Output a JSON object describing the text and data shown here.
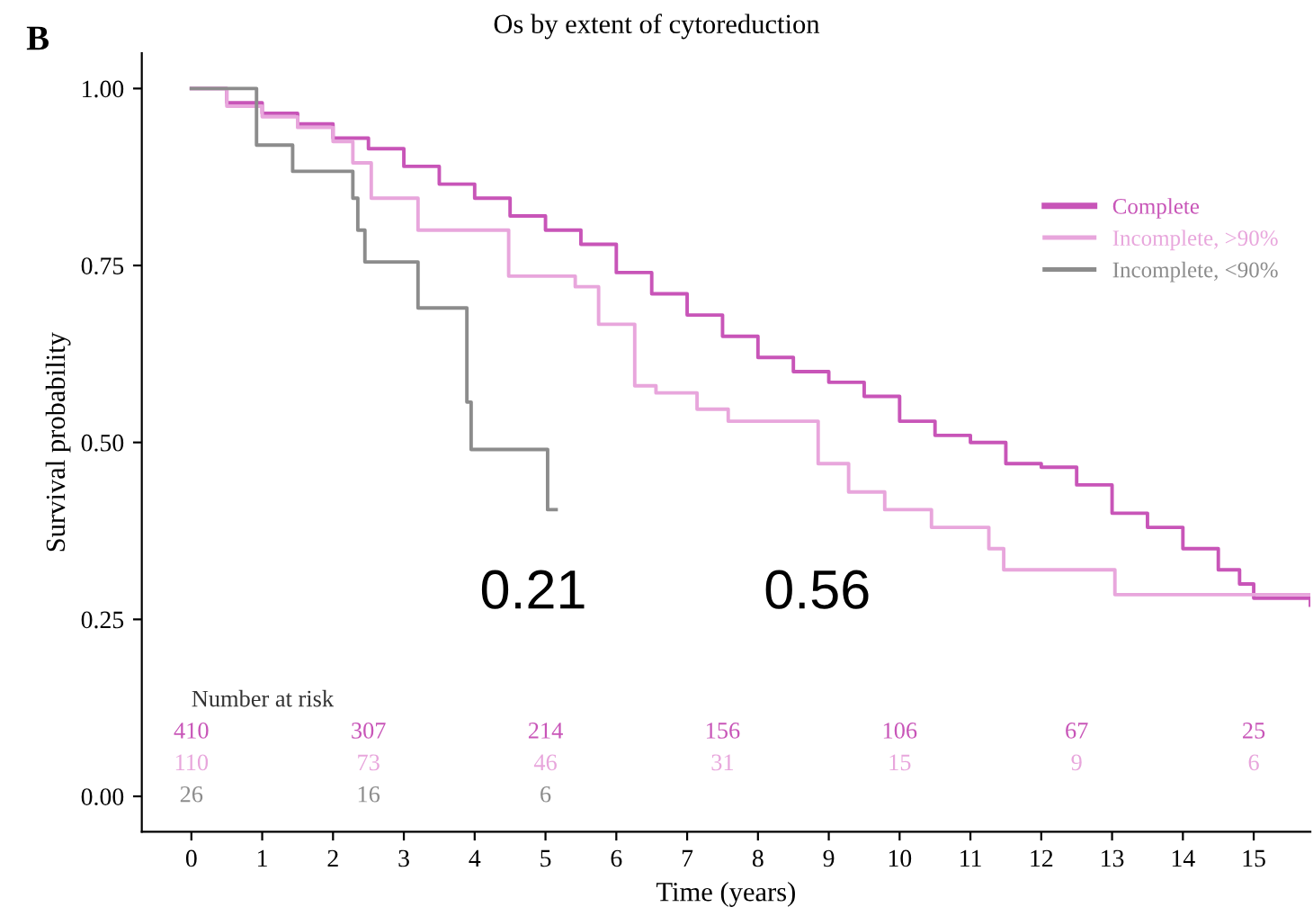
{
  "chart_data": {
    "type": "step",
    "title": "Os by extent of cytoreduction",
    "xlabel": "Time (years)",
    "ylabel": "Survival probability",
    "xlim": [
      -0.7,
      15.8
    ],
    "ylim": [
      -0.05,
      1.05
    ],
    "xticks": [
      0,
      1,
      2,
      3,
      4,
      5,
      6,
      7,
      8,
      9,
      10,
      11,
      12,
      13,
      14,
      15
    ],
    "yticks": [
      {
        "value": 0,
        "label": "0.00"
      },
      {
        "value": 0.25,
        "label": "0.25"
      },
      {
        "value": 0.5,
        "label": "0.50"
      },
      {
        "value": 0.75,
        "label": "0.75"
      },
      {
        "value": 1,
        "label": "1.00"
      }
    ],
    "grid": false,
    "legend": "top right",
    "line_style": "solid",
    "series": [
      {
        "name": "Complete",
        "color": "#c855b8",
        "x": [
          0,
          0.5,
          1,
          1.5,
          2,
          2.5,
          3,
          3.5,
          4,
          4.5,
          5,
          5.5,
          6,
          6.5,
          7,
          7.5,
          8,
          8.5,
          9,
          9.5,
          10,
          10.5,
          11,
          11.5,
          12,
          12.5,
          13,
          13.5,
          14,
          14.5,
          14.8,
          15,
          15.8
        ],
        "values": [
          1.0,
          0.98,
          0.965,
          0.95,
          0.93,
          0.915,
          0.89,
          0.865,
          0.845,
          0.82,
          0.8,
          0.78,
          0.74,
          0.71,
          0.68,
          0.65,
          0.62,
          0.6,
          0.585,
          0.565,
          0.53,
          0.51,
          0.5,
          0.47,
          0.465,
          0.44,
          0.4,
          0.38,
          0.35,
          0.32,
          0.3,
          0.28,
          0.27
        ]
      },
      {
        "name": "Incomplete, >90%",
        "color": "#e8a6dc",
        "x": [
          0,
          0.5,
          1,
          1.5,
          2.0,
          2.28,
          2.54,
          3.2,
          4.48,
          5.42,
          5.75,
          6.26,
          6.56,
          7.14,
          7.58,
          8.85,
          9.28,
          9.79,
          10.45,
          11.26,
          11.47,
          13.04,
          15.8
        ],
        "values": [
          1.0,
          0.975,
          0.96,
          0.945,
          0.925,
          0.895,
          0.845,
          0.8,
          0.735,
          0.72,
          0.667,
          0.58,
          0.57,
          0.547,
          0.53,
          0.47,
          0.43,
          0.405,
          0.38,
          0.35,
          0.32,
          0.285,
          0.285
        ]
      },
      {
        "name": "Incomplete, <90%",
        "color": "#8c8c8c",
        "x": [
          0,
          0.92,
          1.43,
          2.28,
          2.35,
          2.45,
          3.2,
          3.89,
          3.95,
          5.03,
          5.15
        ],
        "values": [
          1.0,
          0.92,
          0.883,
          0.845,
          0.8,
          0.755,
          0.69,
          0.557,
          0.49,
          0.405,
          0.405
        ]
      }
    ],
    "annotations": [
      "B",
      "0.21",
      "0.56",
      "Number at risk",
      "410 307 214 156 106 67 25",
      "110 73 46 31 15 9 6",
      "26 16 6"
    ]
  }
}
